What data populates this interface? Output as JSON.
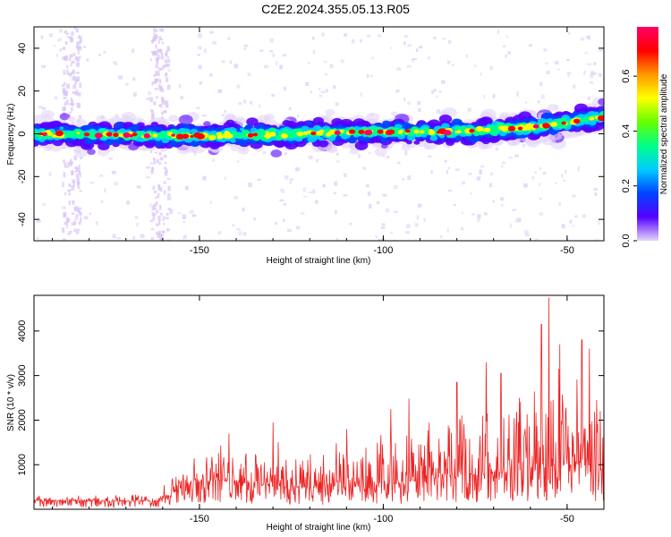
{
  "title": "C2E2.2024.355.05.13.R05",
  "chart_data": [
    {
      "type": "heatmap",
      "xlabel": "Height of straight line (km)",
      "ylabel": "Frequency (Hz)",
      "xlim": [
        -195,
        -40
      ],
      "ylim": [
        -50,
        50
      ],
      "xticks": [
        -150,
        -100,
        -50
      ],
      "yticks": [
        -40,
        -20,
        0,
        20,
        40
      ],
      "trend": {
        "x": [
          -195,
          -150,
          -100,
          -80,
          -60,
          -40
        ],
        "center_hz": [
          0,
          -1,
          1,
          1,
          3,
          8
        ]
      },
      "colorbar": {
        "label": "Normalized spectral amplitude",
        "range": [
          0.0,
          0.78
        ],
        "ticks": [
          0.0,
          0.2,
          0.4,
          0.6
        ],
        "colors": [
          "#e4d6f8",
          "#5500ff",
          "#0044ff",
          "#00ccff",
          "#00ff88",
          "#66ff00",
          "#ffff00",
          "#ff9900",
          "#ff0000",
          "#ff0066"
        ]
      }
    },
    {
      "type": "line",
      "xlabel": "Height of straight line (km)",
      "ylabel": "SNR (10 * v/v)",
      "xlim": [
        -195,
        -40
      ],
      "ylim": [
        0,
        4800
      ],
      "xticks": [
        -150,
        -100,
        -50
      ],
      "yticks": [
        1000,
        2000,
        3000,
        4000
      ],
      "color": "#ee2222",
      "envelope": {
        "x": [
          -195,
          -175,
          -162,
          -158,
          -152,
          -145,
          -130,
          -115,
          -100,
          -85,
          -70,
          -60,
          -50,
          -40
        ],
        "base": [
          200,
          180,
          180,
          300,
          600,
          650,
          500,
          450,
          550,
          700,
          800,
          900,
          1000,
          900
        ],
        "peak": [
          350,
          320,
          420,
          700,
          1400,
          1600,
          1700,
          1500,
          1900,
          2300,
          2600,
          3200,
          3800,
          2800
        ]
      },
      "peaks": [
        [
          -142,
          1700
        ],
        [
          -130,
          1950
        ],
        [
          -110,
          1800
        ],
        [
          -98,
          2250
        ],
        [
          -93,
          2480
        ],
        [
          -80,
          2850
        ],
        [
          -72,
          3300
        ],
        [
          -68,
          3050
        ],
        [
          -63,
          2500
        ],
        [
          -57,
          4150
        ],
        [
          -55,
          4750
        ],
        [
          -52,
          3700
        ],
        [
          -46,
          3800
        ],
        [
          -44,
          3600
        ],
        [
          -42,
          2450
        ]
      ]
    }
  ]
}
